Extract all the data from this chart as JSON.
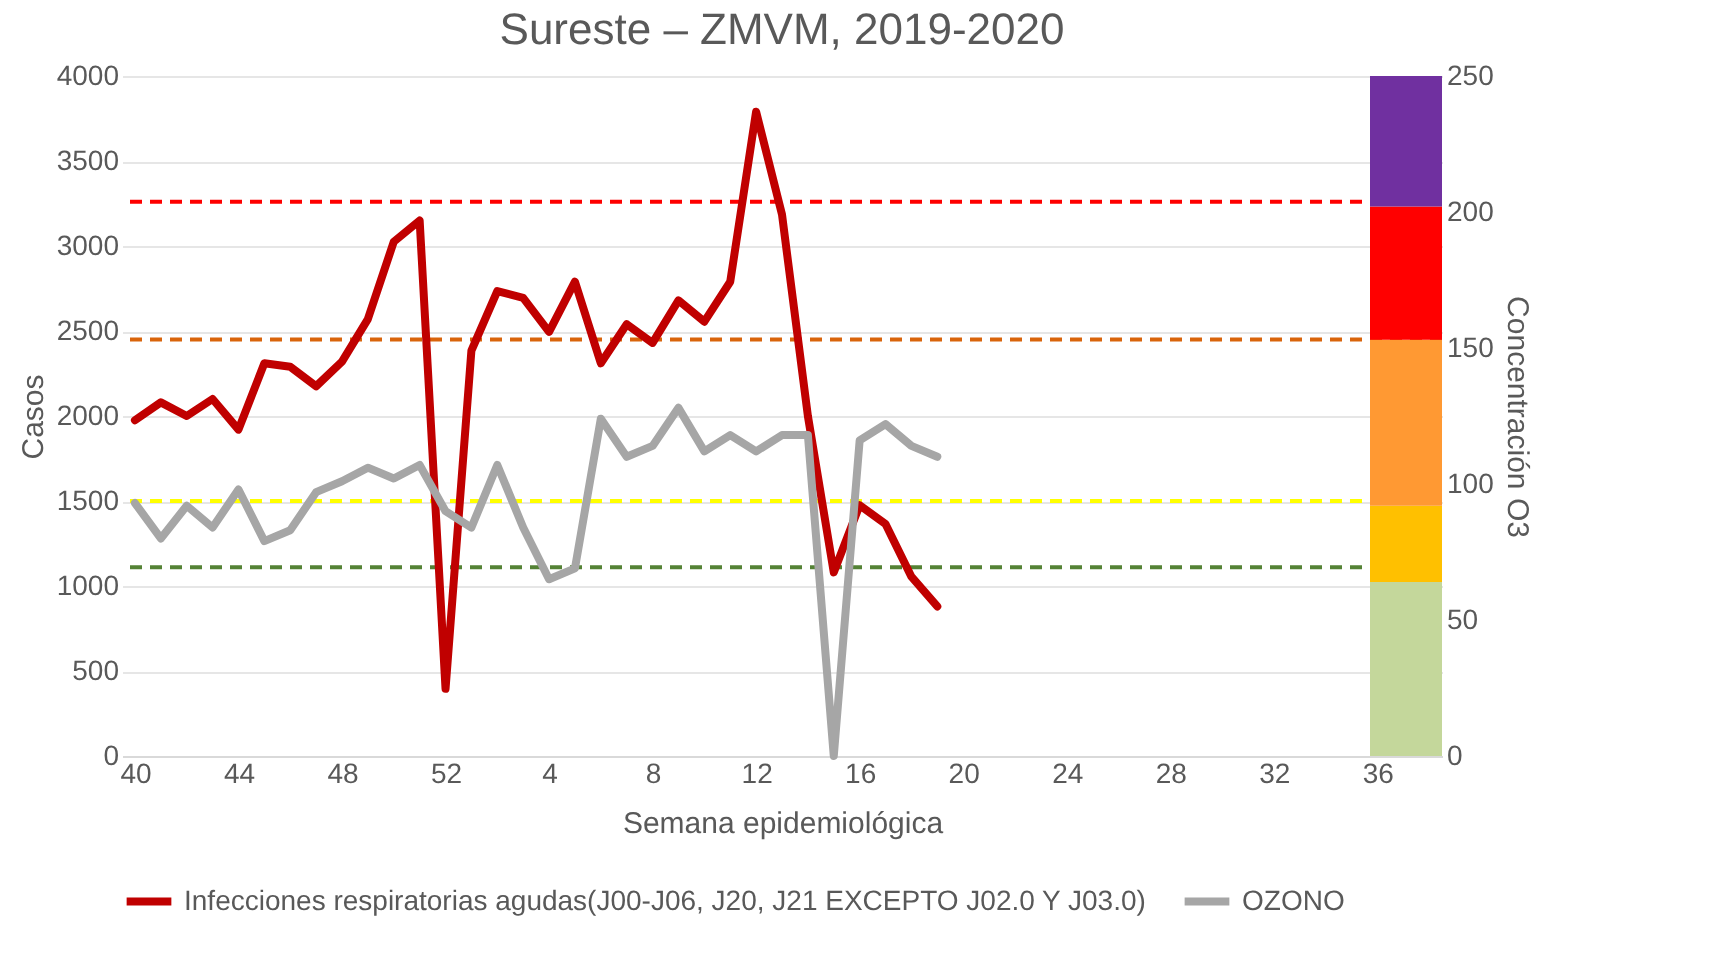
{
  "chart_data": {
    "type": "line",
    "title": "Sureste – ZMVM, 2019-2020",
    "xlabel": "Semana epidemiológica",
    "ylabel": "Casos",
    "y2label": "Concentración O3",
    "categories": [
      "40",
      null,
      null,
      null,
      "44",
      null,
      null,
      null,
      "48",
      null,
      null,
      null,
      "52",
      null,
      null,
      null,
      "4",
      null,
      null,
      null,
      "8",
      null,
      null,
      null,
      "12",
      null,
      null,
      null,
      "16",
      null,
      null,
      null,
      "20",
      null,
      null,
      null,
      "24",
      null,
      null,
      null,
      "28",
      null,
      null,
      null,
      "32",
      null,
      null,
      null,
      "36",
      null,
      null
    ],
    "series": [
      {
        "name": "Infecciones respiratorias agudas(J00-J06, J20, J21 EXCEPTO J02.0 Y J03.0)",
        "color": "#c00000",
        "values": [
          1975,
          2080,
          2000,
          2100,
          1920,
          2310,
          2290,
          2175,
          2320,
          2570,
          3025,
          3150,
          395,
          2385,
          2735,
          2695,
          2495,
          2790,
          2310,
          2540,
          2430,
          2680,
          2555,
          2790,
          3790,
          3185,
          2000,
          1080,
          1475,
          1365,
          1055,
          880,
          null,
          null,
          null,
          null,
          null,
          null,
          null,
          null,
          null,
          null,
          null,
          null,
          null,
          null,
          null,
          null,
          null,
          null,
          null
        ]
      },
      {
        "name": "OZONO",
        "color": "#a6a6a6",
        "axis": "y2",
        "values": [
          93,
          80,
          92,
          84,
          98,
          79,
          83,
          97,
          101,
          106,
          102,
          107,
          90,
          84,
          107,
          84,
          65,
          69,
          124,
          110,
          114,
          128,
          112,
          118,
          112,
          118,
          118,
          0,
          116,
          122,
          114,
          110,
          null,
          null,
          null,
          null,
          null,
          null,
          null,
          null,
          null,
          null,
          null,
          null,
          null,
          null,
          null,
          null,
          null,
          null,
          null
        ]
      }
    ],
    "ylim": [
      0,
      4000
    ],
    "yticks": [
      0,
      500,
      1000,
      1500,
      2000,
      2500,
      3000,
      3500,
      4000
    ],
    "y2lim": [
      0,
      250
    ],
    "y2ticks": [
      0,
      50,
      100,
      150,
      200,
      250
    ],
    "ref_lines": [
      {
        "axis": "y",
        "value": 3260,
        "color": "#ff0000",
        "line_style": "dashed"
      },
      {
        "axis": "y",
        "value": 2450,
        "color": "#d9640b",
        "line_style": "dashed"
      },
      {
        "axis": "y",
        "value": 1500,
        "color": "#ffff00",
        "line_style": "dashed"
      },
      {
        "axis": "y",
        "value": 1110,
        "color": "#548235",
        "line_style": "dashed"
      }
    ],
    "bands": [
      {
        "axis": "y2",
        "from": 0,
        "to": 64,
        "color": "#c4d79b"
      },
      {
        "axis": "y2",
        "from": 64,
        "to": 92,
        "color": "#ffc000"
      },
      {
        "axis": "y2",
        "from": 92,
        "to": 153,
        "color": "#ff9933"
      },
      {
        "axis": "y2",
        "from": 153,
        "to": 202,
        "color": "#ff0000"
      },
      {
        "axis": "y2",
        "from": 202,
        "to": 250,
        "color": "#7030a0"
      }
    ],
    "grid": "y",
    "legend": "bottom",
    "marker": "none",
    "line_style": "solid"
  }
}
